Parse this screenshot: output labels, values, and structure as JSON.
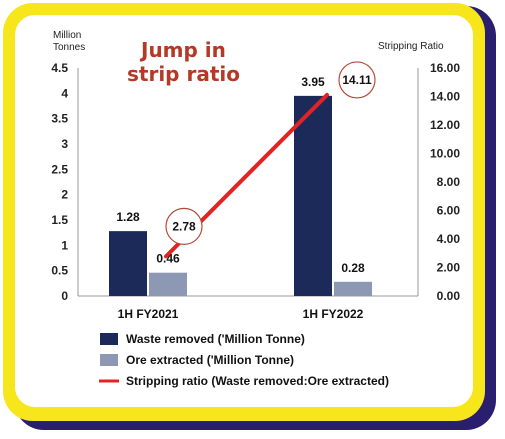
{
  "colors": {
    "frame_outer": "#2a1f6e",
    "frame_yellow": "#f7e61c",
    "waste": "#1c2a5a",
    "ore": "#8c98b4",
    "ratio_line": "#e02424",
    "circle": "#b44a3a",
    "annotation": "#b43a26"
  },
  "annotation": {
    "line1": "Jump in",
    "line2": "strip ratio"
  },
  "chart_data": {
    "type": "bar",
    "categories": [
      "1H FY2021",
      "1H FY2022"
    ],
    "series": [
      {
        "name": "Waste removed ('Million Tonne)",
        "values": [
          1.28,
          3.95
        ],
        "value_labels": [
          "1.28",
          "3.95"
        ],
        "axis": "left"
      },
      {
        "name": "Ore extracted ('Million Tonne)",
        "values": [
          0.46,
          0.28
        ],
        "value_labels": [
          "0.46",
          "0.28"
        ],
        "axis": "left"
      },
      {
        "name": "Stripping ratio (Waste removed:Ore extracted)",
        "type": "line",
        "values": [
          2.78,
          14.11
        ],
        "value_labels": [
          "2.78",
          "14.11"
        ],
        "axis": "right"
      }
    ],
    "ylabel_left_line1": "Million",
    "ylabel_left_line2": "Tonnes",
    "ylabel_right": "Stripping Ratio",
    "ylim_left": [
      0,
      4.5
    ],
    "ylim_right": [
      0,
      16
    ],
    "left_ticks": [
      "0",
      "0.5",
      "1",
      "1.5",
      "2",
      "2.5",
      "3",
      "3.5",
      "4",
      "4.5"
    ],
    "right_ticks": [
      "0.00",
      "2.00",
      "4.00",
      "6.00",
      "8.00",
      "10.00",
      "12.00",
      "14.00",
      "16.00"
    ],
    "grid": false,
    "legend_position": "bottom"
  }
}
